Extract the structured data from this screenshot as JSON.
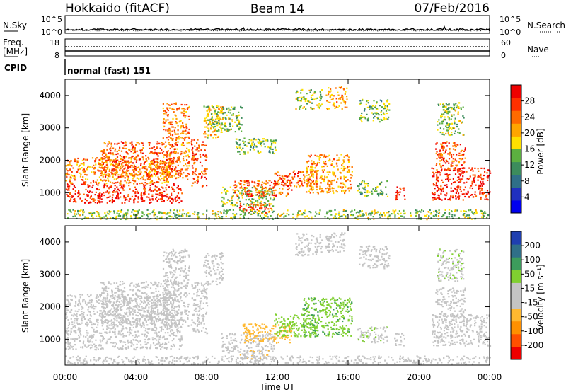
{
  "header": {
    "station": "Hokkaido (fitACF)",
    "beam": "Beam 14",
    "date": "07/Feb/2016"
  },
  "top_panel": {
    "left_label": "N.Sky",
    "right_label": "N.Search",
    "left_ticks": [
      "10^5",
      "10^0"
    ],
    "right_ticks": [
      "10^5",
      "10^0"
    ]
  },
  "freq_panel": {
    "left_label_1": "Freq.",
    "left_label_2": "[MHz]",
    "right_label": "Nave",
    "left_ticks": [
      "18",
      "8"
    ],
    "right_ticks": [
      "60",
      "0"
    ]
  },
  "cpid": {
    "label": "CPID",
    "value": "normal (fast) 151"
  },
  "colors": {
    "power_scale": [
      "#0000ee",
      "#2030c0",
      "#2f6f88",
      "#3c8c5c",
      "#5cb040",
      "#ffe000",
      "#ffa500",
      "#ff6a00",
      "#ff3000",
      "#ee0000"
    ],
    "velocity_scale": [
      "#ee0000",
      "#ff5000",
      "#ff9000",
      "#ffb830",
      "#c4c4c4",
      "#c4c4c4",
      "#80d030",
      "#3c9c5c",
      "#2f6f88",
      "#1f3fb0"
    ]
  },
  "chart_data": [
    {
      "type": "heatmap",
      "name": "power",
      "ylabel": "Slant Range [km]",
      "ylim": [
        200,
        4500
      ],
      "xlim": [
        0,
        24
      ],
      "yticks": [
        "4000",
        "3000",
        "2000",
        "1000"
      ],
      "colorbar_label": "Power [dB]",
      "colorbar_ticks": [
        "28",
        "24",
        "20",
        "16",
        "12",
        "8",
        "4"
      ],
      "colorbar_range": [
        0,
        30
      ],
      "regions": [
        {
          "t0": 0.0,
          "t1": 6.6,
          "r0": 700,
          "r1": 1300,
          "v": 27
        },
        {
          "t0": 0.0,
          "t1": 6.0,
          "r0": 1300,
          "r1": 2100,
          "v": 21
        },
        {
          "t0": 2.0,
          "t1": 6.4,
          "r0": 1500,
          "r1": 2600,
          "v": 24
        },
        {
          "t0": 5.5,
          "t1": 7.0,
          "r0": 1400,
          "r1": 3800,
          "v": 22
        },
        {
          "t0": 7.1,
          "t1": 8.0,
          "r0": 1200,
          "r1": 2700,
          "v": 25
        },
        {
          "t0": 7.8,
          "t1": 8.9,
          "r0": 2700,
          "r1": 3700,
          "v": 18
        },
        {
          "t0": 9.8,
          "t1": 11.6,
          "r0": 400,
          "r1": 700,
          "v": 26
        },
        {
          "t0": 8.8,
          "t1": 11.8,
          "r0": 600,
          "r1": 1200,
          "v": 14
        },
        {
          "t0": 9.5,
          "t1": 12.8,
          "r0": 900,
          "r1": 1400,
          "v": 24
        },
        {
          "t0": 11.8,
          "t1": 14.2,
          "r0": 1200,
          "r1": 1700,
          "v": 24
        },
        {
          "t0": 13.6,
          "t1": 16.2,
          "r0": 1000,
          "r1": 2200,
          "v": 20
        },
        {
          "t0": 16.5,
          "t1": 18.2,
          "r0": 900,
          "r1": 1400,
          "v": 13
        },
        {
          "t0": 18.6,
          "t1": 19.2,
          "r0": 800,
          "r1": 1200,
          "v": 27
        },
        {
          "t0": 9.6,
          "t1": 12.0,
          "r0": 2200,
          "r1": 2700,
          "v": 13
        },
        {
          "t0": 8.0,
          "t1": 10.0,
          "r0": 2900,
          "r1": 3700,
          "v": 14
        },
        {
          "t0": 13.0,
          "t1": 14.5,
          "r0": 3600,
          "r1": 4200,
          "v": 15
        },
        {
          "t0": 14.7,
          "t1": 15.9,
          "r0": 3600,
          "r1": 4300,
          "v": 20
        },
        {
          "t0": 16.6,
          "t1": 18.3,
          "r0": 3200,
          "r1": 3900,
          "v": 13
        },
        {
          "t0": 20.7,
          "t1": 24.0,
          "r0": 800,
          "r1": 1800,
          "v": 27
        },
        {
          "t0": 20.9,
          "t1": 22.6,
          "r0": 1700,
          "r1": 2600,
          "v": 24
        },
        {
          "t0": 21.0,
          "t1": 22.5,
          "r0": 2800,
          "r1": 3800,
          "v": 14
        },
        {
          "t0": 0.0,
          "t1": 24.0,
          "r0": 200,
          "r1": 500,
          "v": 14
        }
      ]
    },
    {
      "type": "heatmap",
      "name": "velocity",
      "ylabel": "Slant Range [km]",
      "ylim": [
        200,
        4500
      ],
      "xlim": [
        0,
        24
      ],
      "yticks": [
        "4000",
        "3000",
        "2000",
        "1000"
      ],
      "colorbar_label": "Velocity [m s⁻¹]",
      "colorbar_ticks": [
        "200",
        "100",
        "50",
        "15",
        "-15",
        "-50",
        "-100",
        "-200"
      ],
      "colorbar_range": [
        -250,
        250
      ],
      "regions": [
        {
          "t0": 0.0,
          "t1": 6.6,
          "r0": 700,
          "r1": 1500,
          "v": 0
        },
        {
          "t0": 0.0,
          "t1": 6.0,
          "r0": 1500,
          "r1": 2400,
          "v": 0
        },
        {
          "t0": 2.0,
          "t1": 6.4,
          "r0": 1500,
          "r1": 2800,
          "v": -30
        },
        {
          "t0": 5.5,
          "t1": 7.0,
          "r0": 1400,
          "r1": 3800,
          "v": 0
        },
        {
          "t0": 7.1,
          "t1": 8.0,
          "r0": 1200,
          "r1": 2800,
          "v": 0
        },
        {
          "t0": 7.8,
          "t1": 8.9,
          "r0": 2700,
          "r1": 3700,
          "v": 0
        },
        {
          "t0": 9.8,
          "t1": 11.6,
          "r0": 400,
          "r1": 700,
          "v": -40
        },
        {
          "t0": 8.8,
          "t1": 11.8,
          "r0": 600,
          "r1": 1200,
          "v": 0
        },
        {
          "t0": 10.0,
          "t1": 12.8,
          "r0": 900,
          "r1": 1500,
          "v": -80
        },
        {
          "t0": 11.8,
          "t1": 14.2,
          "r0": 1100,
          "r1": 1800,
          "v": 70
        },
        {
          "t0": 13.4,
          "t1": 16.2,
          "r0": 1100,
          "r1": 2300,
          "v": 90
        },
        {
          "t0": 16.5,
          "t1": 18.2,
          "r0": 900,
          "r1": 1400,
          "v": 40
        },
        {
          "t0": 18.6,
          "t1": 19.2,
          "r0": 800,
          "r1": 1200,
          "v": 0
        },
        {
          "t0": 13.0,
          "t1": 14.5,
          "r0": 3600,
          "r1": 4300,
          "v": 0
        },
        {
          "t0": 14.7,
          "t1": 15.9,
          "r0": 3700,
          "r1": 4300,
          "v": 0
        },
        {
          "t0": 16.6,
          "t1": 18.3,
          "r0": 3200,
          "r1": 3900,
          "v": 0
        },
        {
          "t0": 20.7,
          "t1": 24.0,
          "r0": 800,
          "r1": 1800,
          "v": 0
        },
        {
          "t0": 20.9,
          "t1": 22.6,
          "r0": 1700,
          "r1": 2600,
          "v": 0
        },
        {
          "t0": 21.0,
          "t1": 22.5,
          "r0": 2800,
          "r1": 3800,
          "v": 40
        },
        {
          "t0": 0.0,
          "t1": 24.0,
          "r0": 250,
          "r1": 500,
          "v": 20
        }
      ]
    }
  ],
  "x_axis": {
    "label": "Time UT",
    "ticks": [
      "00:00",
      "04:00",
      "08:00",
      "12:00",
      "16:00",
      "20:00",
      "00:00"
    ]
  }
}
